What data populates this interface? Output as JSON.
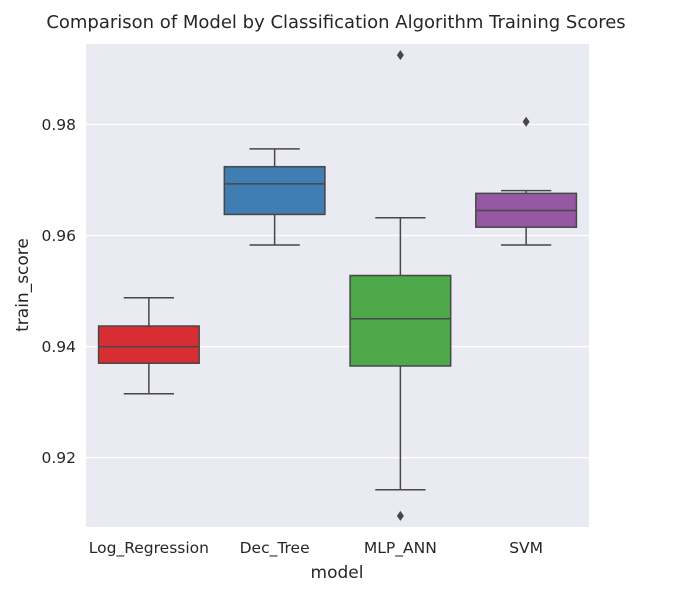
{
  "chart_data": {
    "type": "box",
    "title": "Comparison of Model by Classification Algorithm Training Scores",
    "xlabel": "model",
    "ylabel": "train_score",
    "ylim": [
      0.9075,
      0.9945
    ],
    "yticks": [
      0.92,
      0.94,
      0.96,
      0.98
    ],
    "ytick_labels": [
      "0.92",
      "0.94",
      "0.96",
      "0.98"
    ],
    "grid": true,
    "background": "#eaeaf2",
    "series": [
      {
        "name": "Log_Regression",
        "whisker_low": 0.9315,
        "q1": 0.937,
        "median": 0.94,
        "q3": 0.9437,
        "whisker_high": 0.9488,
        "outliers": [],
        "color": "#d62e33"
      },
      {
        "name": "Dec_Tree",
        "whisker_low": 0.9583,
        "q1": 0.9638,
        "median": 0.9693,
        "q3": 0.9724,
        "whisker_high": 0.9756,
        "outliers": [],
        "color": "#3f7db3"
      },
      {
        "name": "MLP_ANN",
        "whisker_low": 0.9142,
        "q1": 0.9365,
        "median": 0.945,
        "q3": 0.9528,
        "whisker_high": 0.9632,
        "outliers": [
          0.9095,
          0.9925
        ],
        "color": "#4ea94b"
      },
      {
        "name": "SVM",
        "whisker_low": 0.9583,
        "q1": 0.9615,
        "median": 0.9645,
        "q3": 0.9676,
        "whisker_high": 0.9681,
        "outliers": [
          0.9805
        ],
        "color": "#9657a3"
      }
    ]
  }
}
